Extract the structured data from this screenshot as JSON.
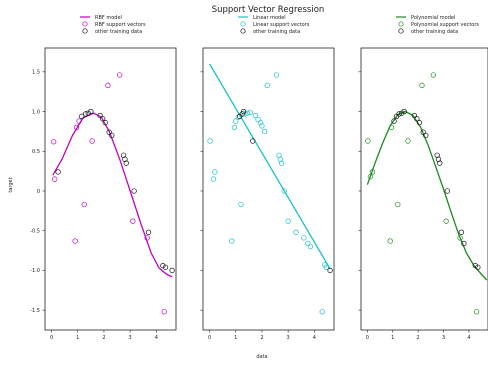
{
  "chart_data": {
    "type": "scatter",
    "title": "Support Vector Regression",
    "xlabel": "data",
    "ylabel": "target",
    "xlim": [
      -0.25,
      4.75
    ],
    "ylim": [
      -1.75,
      1.8
    ],
    "xticks": [
      0,
      1,
      2,
      3,
      4
    ],
    "yticks": [
      1.5,
      1.0,
      0.5,
      0.0,
      -0.5,
      -1.0,
      -1.5
    ],
    "ytick_labels": [
      "1.5",
      "1.0",
      "0.5",
      "0",
      "-0.5",
      "-1.0",
      "-1.5"
    ],
    "grid": false,
    "legend_placement": "above each panel",
    "panels": [
      {
        "model_label": "RBF model",
        "sv_label": "RBF support vectors",
        "other_label": "other training data",
        "color": "#c000c0",
        "model_curve": {
          "x": [
            0.05,
            0.4,
            0.8,
            1.2,
            1.6,
            1.9,
            2.2,
            2.6,
            3.0,
            3.4,
            3.8,
            4.1,
            4.4,
            4.6
          ],
          "y": [
            0.2,
            0.4,
            0.7,
            0.92,
            0.98,
            0.93,
            0.75,
            0.4,
            0.0,
            -0.4,
            -0.78,
            -0.97,
            -1.05,
            -1.08
          ]
        },
        "support_vectors": {
          "x": [
            0.08,
            0.12,
            0.9,
            0.95,
            1.05,
            1.25,
            1.55,
            2.15,
            2.6,
            3.1,
            3.65,
            4.3
          ],
          "y": [
            0.62,
            0.15,
            -0.63,
            0.8,
            0.88,
            -0.17,
            0.63,
            1.33,
            1.46,
            -0.38,
            -0.59,
            -1.52
          ]
        },
        "other_data": {
          "x": [
            0.25,
            1.15,
            1.3,
            1.4,
            1.5,
            1.85,
            1.95,
            2.05,
            2.2,
            2.3,
            2.75,
            2.8,
            2.85,
            3.15,
            3.7,
            4.25,
            4.35,
            4.6
          ],
          "y": [
            0.24,
            0.94,
            0.97,
            0.98,
            1.0,
            0.95,
            0.91,
            0.86,
            0.74,
            0.7,
            0.45,
            0.4,
            0.35,
            0.0,
            -0.52,
            -0.94,
            -0.96,
            -1.0
          ]
        }
      },
      {
        "model_label": "Linear model",
        "sv_label": "Linear support vectors",
        "other_label": "other training data",
        "color": "#17c0c8",
        "model_curve": {
          "x": [
            0.0,
            4.6
          ],
          "y": [
            1.6,
            -0.98
          ]
        },
        "support_vectors": {
          "x": [
            0.02,
            0.15,
            0.2,
            0.85,
            0.95,
            1.0,
            1.1,
            1.2,
            1.35,
            1.45,
            1.55,
            1.75,
            1.85,
            1.95,
            2.0,
            2.1,
            2.2,
            2.55,
            2.65,
            2.7,
            2.75,
            2.85,
            3.0,
            3.3,
            3.6,
            3.75,
            3.85,
            4.3,
            4.4,
            4.45
          ],
          "y": [
            0.63,
            0.15,
            0.24,
            -0.63,
            0.8,
            0.88,
            0.93,
            -0.17,
            0.97,
            0.98,
            0.99,
            0.95,
            0.9,
            0.86,
            0.82,
            0.75,
            1.33,
            1.46,
            0.45,
            0.4,
            0.35,
            0.0,
            -0.38,
            -0.52,
            -0.59,
            -0.66,
            -0.7,
            -1.52,
            -0.93,
            -0.96
          ]
        },
        "other_data": {
          "x": [
            1.15,
            1.25,
            1.3,
            1.65,
            4.6
          ],
          "y": [
            0.94,
            0.97,
            1.0,
            0.63,
            -1.0
          ]
        }
      },
      {
        "model_label": "Polynomial model",
        "sv_label": "Polynomial support vectors",
        "other_label": "other training data",
        "color": "#1a8a1a",
        "model_curve": {
          "x": [
            0.0,
            0.3,
            0.6,
            0.9,
            1.2,
            1.5,
            1.8,
            2.1,
            2.4,
            2.7,
            3.0,
            3.3,
            3.6,
            3.9,
            4.2,
            4.5,
            4.7
          ],
          "y": [
            0.08,
            0.35,
            0.6,
            0.82,
            0.96,
            1.0,
            0.95,
            0.8,
            0.57,
            0.3,
            0.02,
            -0.27,
            -0.55,
            -0.78,
            -0.94,
            -1.05,
            -1.12
          ]
        },
        "support_vectors": {
          "x": [
            0.02,
            0.12,
            0.2,
            0.9,
            0.95,
            1.2,
            1.6,
            2.15,
            2.6,
            3.1,
            3.65,
            4.3
          ],
          "y": [
            0.63,
            0.18,
            0.24,
            -0.63,
            0.8,
            -0.17,
            0.63,
            1.33,
            1.46,
            -0.38,
            -0.59,
            -1.52
          ]
        },
        "other_data": {
          "x": [
            1.05,
            1.15,
            1.25,
            1.35,
            1.45,
            1.85,
            1.95,
            2.05,
            2.2,
            2.3,
            2.75,
            2.8,
            2.85,
            3.15,
            3.7,
            3.8,
            4.25,
            4.35
          ],
          "y": [
            0.88,
            0.94,
            0.97,
            0.98,
            1.0,
            0.95,
            0.91,
            0.86,
            0.74,
            0.7,
            0.45,
            0.4,
            0.35,
            0.0,
            -0.52,
            -0.66,
            -0.94,
            -0.96
          ]
        }
      }
    ]
  }
}
